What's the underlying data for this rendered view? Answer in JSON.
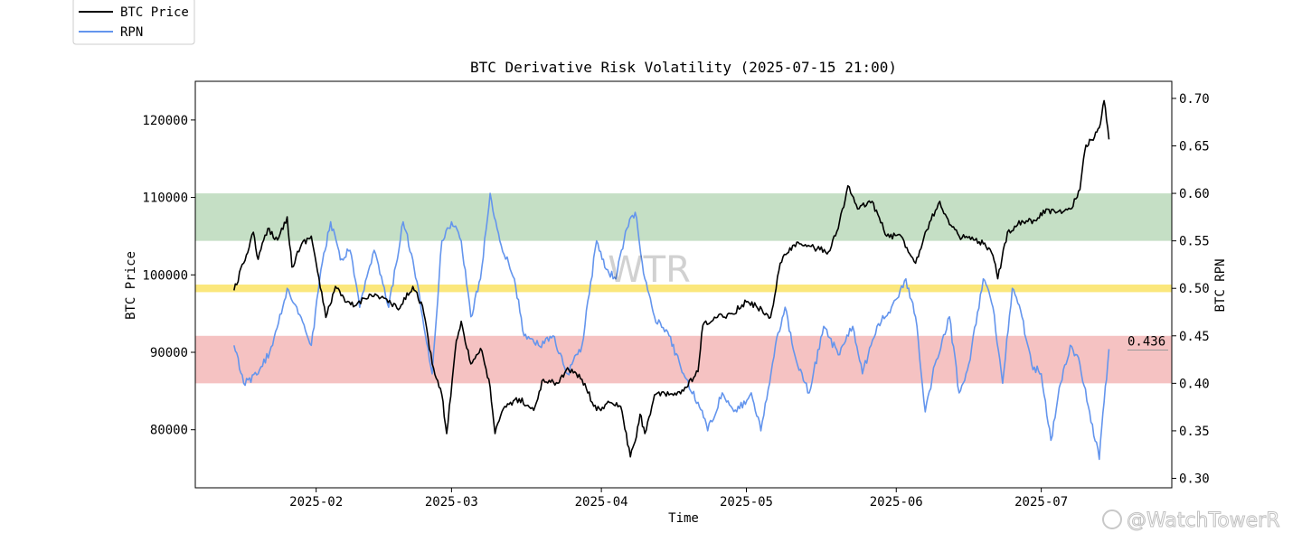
{
  "chart_data": {
    "type": "line",
    "title": "BTC Derivative Risk Volatility (2025-07-15 21:00)",
    "xlabel": "Time",
    "ylabel_left": "BTC Price",
    "ylabel_right": "BTC RPN",
    "x_ticks": [
      "2025-02",
      "2025-03",
      "2025-04",
      "2025-05",
      "2025-06",
      "2025-07"
    ],
    "x_range": [
      "2025-01-07",
      "2025-07-28"
    ],
    "y_left_range": [
      72500,
      125000
    ],
    "y_left_ticks": [
      80000,
      90000,
      100000,
      110000,
      120000
    ],
    "y_right_range": [
      0.29,
      0.718
    ],
    "y_right_ticks": [
      0.3,
      0.35,
      0.4,
      0.45,
      0.5,
      0.55,
      0.6,
      0.65,
      0.7
    ],
    "y_right_tick_labels": [
      "0.30",
      "0.35",
      "0.40",
      "0.45",
      "0.50",
      "0.55",
      "0.60",
      "0.65",
      "0.70"
    ],
    "bands": [
      {
        "name": "high",
        "axis": "right",
        "from": 0.55,
        "to": 0.6,
        "color": "#c5dfc5"
      },
      {
        "name": "mid",
        "axis": "right",
        "from": 0.496,
        "to": 0.504,
        "color": "#fbe77c"
      },
      {
        "name": "low",
        "axis": "right",
        "from": 0.4,
        "to": 0.45,
        "color": "#f5c2c2"
      }
    ],
    "legend_position": "top-left",
    "latest_rpn_label": "0.436",
    "series": [
      {
        "name": "BTC Price",
        "axis": "left",
        "color": "#000000",
        "points": [
          [
            "2025-01-15",
            98000
          ],
          [
            "2025-01-17",
            101500
          ],
          [
            "2025-01-19",
            105500
          ],
          [
            "2025-01-20",
            102000
          ],
          [
            "2025-01-22",
            106000
          ],
          [
            "2025-01-24",
            104500
          ],
          [
            "2025-01-26",
            107500
          ],
          [
            "2025-01-27",
            101000
          ],
          [
            "2025-01-29",
            104000
          ],
          [
            "2025-01-31",
            105000
          ],
          [
            "2025-02-01",
            101500
          ],
          [
            "2025-02-03",
            94500
          ],
          [
            "2025-02-05",
            98500
          ],
          [
            "2025-02-07",
            96500
          ],
          [
            "2025-02-09",
            96000
          ],
          [
            "2025-02-12",
            97500
          ],
          [
            "2025-02-15",
            97000
          ],
          [
            "2025-02-18",
            95500
          ],
          [
            "2025-02-21",
            98500
          ],
          [
            "2025-02-23",
            96000
          ],
          [
            "2025-02-25",
            88500
          ],
          [
            "2025-02-27",
            84500
          ],
          [
            "2025-02-28",
            79500
          ],
          [
            "2025-03-02",
            91500
          ],
          [
            "2025-03-03",
            94000
          ],
          [
            "2025-03-05",
            88500
          ],
          [
            "2025-03-07",
            90500
          ],
          [
            "2025-03-09",
            85500
          ],
          [
            "2025-03-10",
            79500
          ],
          [
            "2025-03-12",
            83000
          ],
          [
            "2025-03-15",
            84000
          ],
          [
            "2025-03-18",
            82500
          ],
          [
            "2025-03-20",
            86500
          ],
          [
            "2025-03-23",
            86000
          ],
          [
            "2025-03-25",
            88000
          ],
          [
            "2025-03-28",
            86500
          ],
          [
            "2025-03-31",
            82500
          ],
          [
            "2025-04-03",
            83500
          ],
          [
            "2025-04-05",
            83000
          ],
          [
            "2025-04-07",
            76500
          ],
          [
            "2025-04-08",
            78500
          ],
          [
            "2025-04-09",
            82000
          ],
          [
            "2025-04-10",
            79500
          ],
          [
            "2025-04-12",
            84500
          ],
          [
            "2025-04-15",
            84500
          ],
          [
            "2025-04-18",
            85000
          ],
          [
            "2025-04-21",
            87500
          ],
          [
            "2025-04-22",
            93500
          ],
          [
            "2025-04-25",
            94500
          ],
          [
            "2025-04-28",
            95000
          ],
          [
            "2025-05-01",
            96500
          ],
          [
            "2025-05-03",
            96000
          ],
          [
            "2025-05-06",
            94500
          ],
          [
            "2025-05-08",
            101500
          ],
          [
            "2025-05-10",
            103500
          ],
          [
            "2025-05-12",
            104000
          ],
          [
            "2025-05-15",
            103500
          ],
          [
            "2025-05-18",
            103000
          ],
          [
            "2025-05-20",
            106000
          ],
          [
            "2025-05-22",
            111500
          ],
          [
            "2025-05-24",
            108500
          ],
          [
            "2025-05-27",
            109500
          ],
          [
            "2025-05-30",
            105000
          ],
          [
            "2025-06-02",
            105000
          ],
          [
            "2025-06-05",
            101500
          ],
          [
            "2025-06-07",
            105500
          ],
          [
            "2025-06-10",
            109500
          ],
          [
            "2025-06-12",
            106500
          ],
          [
            "2025-06-14",
            105000
          ],
          [
            "2025-06-17",
            104500
          ],
          [
            "2025-06-19",
            104000
          ],
          [
            "2025-06-21",
            102500
          ],
          [
            "2025-06-22",
            99500
          ],
          [
            "2025-06-24",
            105500
          ],
          [
            "2025-06-27",
            107000
          ],
          [
            "2025-06-30",
            107000
          ],
          [
            "2025-07-02",
            108500
          ],
          [
            "2025-07-04",
            108000
          ],
          [
            "2025-07-07",
            108500
          ],
          [
            "2025-07-09",
            111000
          ],
          [
            "2025-07-10",
            116000
          ],
          [
            "2025-07-11",
            117500
          ],
          [
            "2025-07-12",
            117800
          ],
          [
            "2025-07-13",
            119000
          ],
          [
            "2025-07-14",
            122500
          ],
          [
            "2025-07-15",
            117500
          ]
        ]
      },
      {
        "name": "RPN",
        "axis": "right",
        "color": "#6495ed",
        "points": [
          [
            "2025-01-15",
            0.44
          ],
          [
            "2025-01-17",
            0.4
          ],
          [
            "2025-01-20",
            0.41
          ],
          [
            "2025-01-23",
            0.44
          ],
          [
            "2025-01-26",
            0.5
          ],
          [
            "2025-01-28",
            0.48
          ],
          [
            "2025-01-31",
            0.44
          ],
          [
            "2025-02-02",
            0.52
          ],
          [
            "2025-02-04",
            0.57
          ],
          [
            "2025-02-06",
            0.53
          ],
          [
            "2025-02-08",
            0.54
          ],
          [
            "2025-02-10",
            0.48
          ],
          [
            "2025-02-13",
            0.54
          ],
          [
            "2025-02-16",
            0.48
          ],
          [
            "2025-02-19",
            0.57
          ],
          [
            "2025-02-21",
            0.53
          ],
          [
            "2025-02-23",
            0.47
          ],
          [
            "2025-02-25",
            0.41
          ],
          [
            "2025-02-27",
            0.55
          ],
          [
            "2025-03-01",
            0.57
          ],
          [
            "2025-03-03",
            0.55
          ],
          [
            "2025-03-05",
            0.47
          ],
          [
            "2025-03-07",
            0.51
          ],
          [
            "2025-03-09",
            0.6
          ],
          [
            "2025-03-11",
            0.55
          ],
          [
            "2025-03-14",
            0.51
          ],
          [
            "2025-03-16",
            0.45
          ],
          [
            "2025-03-19",
            0.44
          ],
          [
            "2025-03-22",
            0.45
          ],
          [
            "2025-03-25",
            0.41
          ],
          [
            "2025-03-28",
            0.44
          ],
          [
            "2025-03-31",
            0.55
          ],
          [
            "2025-04-02",
            0.52
          ],
          [
            "2025-04-04",
            0.51
          ],
          [
            "2025-04-06",
            0.56
          ],
          [
            "2025-04-08",
            0.58
          ],
          [
            "2025-04-10",
            0.51
          ],
          [
            "2025-04-12",
            0.47
          ],
          [
            "2025-04-15",
            0.45
          ],
          [
            "2025-04-18",
            0.41
          ],
          [
            "2025-04-21",
            0.38
          ],
          [
            "2025-04-23",
            0.35
          ],
          [
            "2025-04-26",
            0.39
          ],
          [
            "2025-04-29",
            0.37
          ],
          [
            "2025-05-02",
            0.39
          ],
          [
            "2025-05-04",
            0.35
          ],
          [
            "2025-05-07",
            0.44
          ],
          [
            "2025-05-09",
            0.48
          ],
          [
            "2025-05-11",
            0.43
          ],
          [
            "2025-05-14",
            0.39
          ],
          [
            "2025-05-17",
            0.46
          ],
          [
            "2025-05-20",
            0.43
          ],
          [
            "2025-05-23",
            0.46
          ],
          [
            "2025-05-25",
            0.41
          ],
          [
            "2025-05-28",
            0.46
          ],
          [
            "2025-05-31",
            0.48
          ],
          [
            "2025-06-03",
            0.51
          ],
          [
            "2025-06-05",
            0.47
          ],
          [
            "2025-06-07",
            0.37
          ],
          [
            "2025-06-09",
            0.42
          ],
          [
            "2025-06-12",
            0.47
          ],
          [
            "2025-06-14",
            0.39
          ],
          [
            "2025-06-16",
            0.42
          ],
          [
            "2025-06-19",
            0.51
          ],
          [
            "2025-06-21",
            0.48
          ],
          [
            "2025-06-23",
            0.4
          ],
          [
            "2025-06-25",
            0.5
          ],
          [
            "2025-06-27",
            0.47
          ],
          [
            "2025-06-29",
            0.42
          ],
          [
            "2025-07-01",
            0.41
          ],
          [
            "2025-07-03",
            0.34
          ],
          [
            "2025-07-05",
            0.4
          ],
          [
            "2025-07-07",
            0.44
          ],
          [
            "2025-07-09",
            0.42
          ],
          [
            "2025-07-11",
            0.37
          ],
          [
            "2025-07-13",
            0.32
          ],
          [
            "2025-07-14",
            0.38
          ],
          [
            "2025-07-15",
            0.436
          ]
        ]
      }
    ]
  },
  "annotations": {
    "watermark_center": "WTR",
    "watermark_corner": "@WatchTowerR"
  },
  "colors": {
    "price_line": "#000000",
    "rpn_line": "#6495ed",
    "band_high": "#c5dfc5",
    "band_mid": "#fbe77c",
    "band_low": "#f5c2c2"
  }
}
